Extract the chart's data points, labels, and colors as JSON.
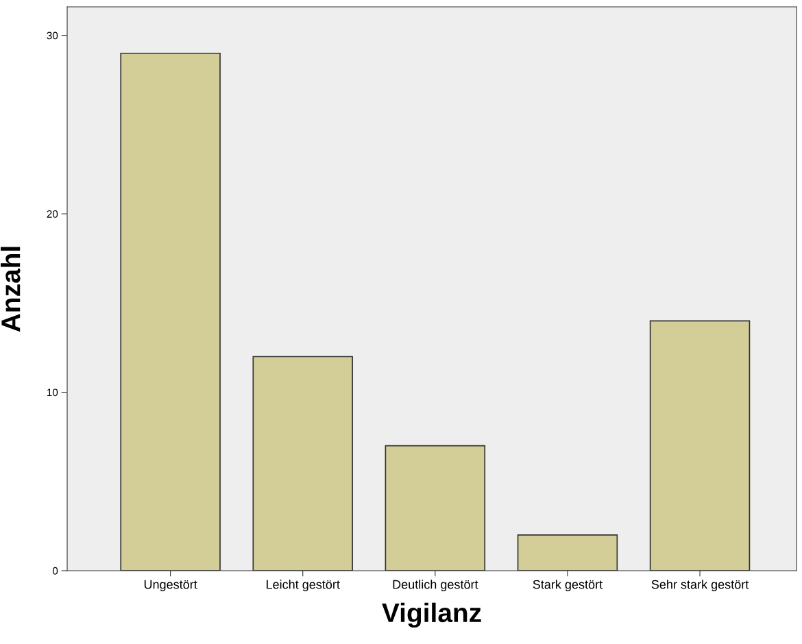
{
  "chart_data": {
    "type": "bar",
    "xlabel": "Vigilanz",
    "ylabel": "Anzahl",
    "categories": [
      "Ungestört",
      "Leicht gestört",
      "Deutlich gestört",
      "Stark gestört",
      "Sehr stark gestört"
    ],
    "values": [
      29,
      12,
      7,
      2,
      14
    ],
    "color": "#d3ce97",
    "ylim": [
      0,
      31.6
    ],
    "yticks": [
      0,
      10,
      20,
      30
    ],
    "grid": false,
    "legend": false
  }
}
